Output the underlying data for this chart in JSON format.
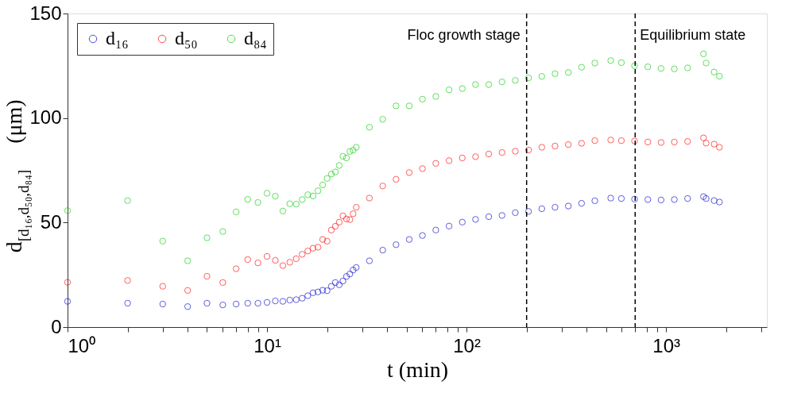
{
  "chart_data": {
    "type": "scatter",
    "xlabel": "t (min)",
    "ylabel": "d$_{[d₁₆,d₅₀,d₈₄]}$ (μm)",
    "log": "x",
    "xlim": [
      1,
      3200
    ],
    "ylim": [
      0,
      150
    ],
    "xticks": [
      {
        "value": 1,
        "label": "10⁰"
      },
      {
        "value": 2,
        "label": null
      },
      {
        "value": 3,
        "label": null
      },
      {
        "value": 4,
        "label": null
      },
      {
        "value": 5,
        "label": null
      },
      {
        "value": 6,
        "label": null
      },
      {
        "value": 7,
        "label": null
      },
      {
        "value": 8,
        "label": null
      },
      {
        "value": 9,
        "label": null
      },
      {
        "value": 10,
        "label": "10¹"
      },
      {
        "value": 20,
        "label": null
      },
      {
        "value": 30,
        "label": null
      },
      {
        "value": 40,
        "label": null
      },
      {
        "value": 50,
        "label": null
      },
      {
        "value": 60,
        "label": null
      },
      {
        "value": 70,
        "label": null
      },
      {
        "value": 80,
        "label": null
      },
      {
        "value": 90,
        "label": null
      },
      {
        "value": 100,
        "label": "10²"
      },
      {
        "value": 200,
        "label": null
      },
      {
        "value": 300,
        "label": null
      },
      {
        "value": 400,
        "label": null
      },
      {
        "value": 500,
        "label": null
      },
      {
        "value": 600,
        "label": null
      },
      {
        "value": 700,
        "label": null
      },
      {
        "value": 800,
        "label": null
      },
      {
        "value": 900,
        "label": null
      },
      {
        "value": 1000,
        "label": "10³"
      },
      {
        "value": 2000,
        "label": null
      },
      {
        "value": 3000,
        "label": null
      }
    ],
    "yticks": [
      0,
      50,
      100,
      150
    ],
    "grid": false,
    "legend": "top left",
    "marker": "circle",
    "x": [
      1,
      2,
      3,
      4,
      5,
      6,
      7,
      8,
      9,
      10,
      11,
      12,
      13,
      14,
      15,
      16,
      17,
      18,
      19,
      20,
      21,
      22,
      23,
      24,
      25,
      26,
      27,
      28.0,
      32.6,
      38.0,
      44.3,
      51.6,
      60.1,
      70.1,
      81.7,
      95.2,
      110.9,
      129.2,
      150.6,
      175.5,
      204.5,
      238.3,
      277.6,
      323.6,
      377.1,
      439.5,
      528,
      597,
      695,
      810,
      944,
      1100,
      1282,
      1540,
      1588,
      1741,
      1851
    ],
    "series": [
      {
        "name": "d₁₆",
        "color": "#0000cc",
        "values": [
          12.3,
          11.4,
          11,
          9.8,
          11.4,
          10.6,
          11,
          11.4,
          11.4,
          11.8,
          12.5,
          12.3,
          12.9,
          13.1,
          13.8,
          15,
          16.4,
          16.8,
          17.6,
          17.4,
          19.5,
          21.3,
          20.2,
          22,
          24.2,
          25.4,
          27.3,
          28.5,
          31.7,
          36.8,
          39.4,
          41.9,
          43.8,
          46.4,
          48.3,
          50.2,
          51.5,
          52.8,
          53.4,
          54.7,
          55.3,
          56.6,
          57.3,
          57.9,
          59.2,
          60.4,
          61.7,
          61.5,
          61.2,
          61.0,
          60.8,
          61.0,
          61.5,
          62.4,
          61.5,
          60.5,
          59.8
        ]
      },
      {
        "name": "d₅₀",
        "color": "#ff0000",
        "values": [
          21.4,
          22.3,
          19.5,
          17.5,
          24.3,
          21.3,
          27.9,
          32.3,
          30.7,
          33.8,
          31.9,
          29.4,
          31,
          32.7,
          34.8,
          36.4,
          37.7,
          38.2,
          41.9,
          41.1,
          46.4,
          48.2,
          50.2,
          53.2,
          51.7,
          51.4,
          54.2,
          57.3,
          61.7,
          67.5,
          70.7,
          73.9,
          75.8,
          78.3,
          79.6,
          80.9,
          81.5,
          82.8,
          83.5,
          84.1,
          84.7,
          86,
          86.6,
          87.3,
          87.9,
          89.2,
          89.5,
          89.2,
          89.0,
          88.5,
          88.3,
          88.5,
          88.8,
          90.5,
          88.0,
          87.5,
          86.0
        ]
      },
      {
        "name": "d₈₄",
        "color": "#00cc00",
        "values": [
          55.7,
          60.5,
          41.1,
          31.7,
          42.7,
          45.7,
          55.1,
          61.1,
          59.6,
          64,
          62.6,
          55.5,
          59,
          58.8,
          61,
          63.3,
          62.7,
          65.2,
          68,
          71.1,
          73.2,
          74.2,
          77.3,
          81.7,
          80.9,
          84,
          84.6,
          86,
          95.6,
          99.4,
          105.8,
          105.8,
          109,
          110.3,
          113.5,
          114.1,
          116,
          116,
          117.3,
          118,
          119.2,
          119.9,
          121.2,
          121.8,
          124.3,
          126.3,
          127.5,
          126.5,
          125,
          124.5,
          123.7,
          123.5,
          124,
          130.7,
          126.3,
          122,
          120
        ]
      }
    ],
    "ref_lines": [
      {
        "axis": "x",
        "value": 200,
        "label": "Floc growth stage",
        "line_style": "dashed",
        "color": "#000000"
      },
      {
        "axis": "x",
        "value": 700,
        "label": "Equilibrium state",
        "line_style": "dashed",
        "color": "#000000"
      }
    ]
  }
}
